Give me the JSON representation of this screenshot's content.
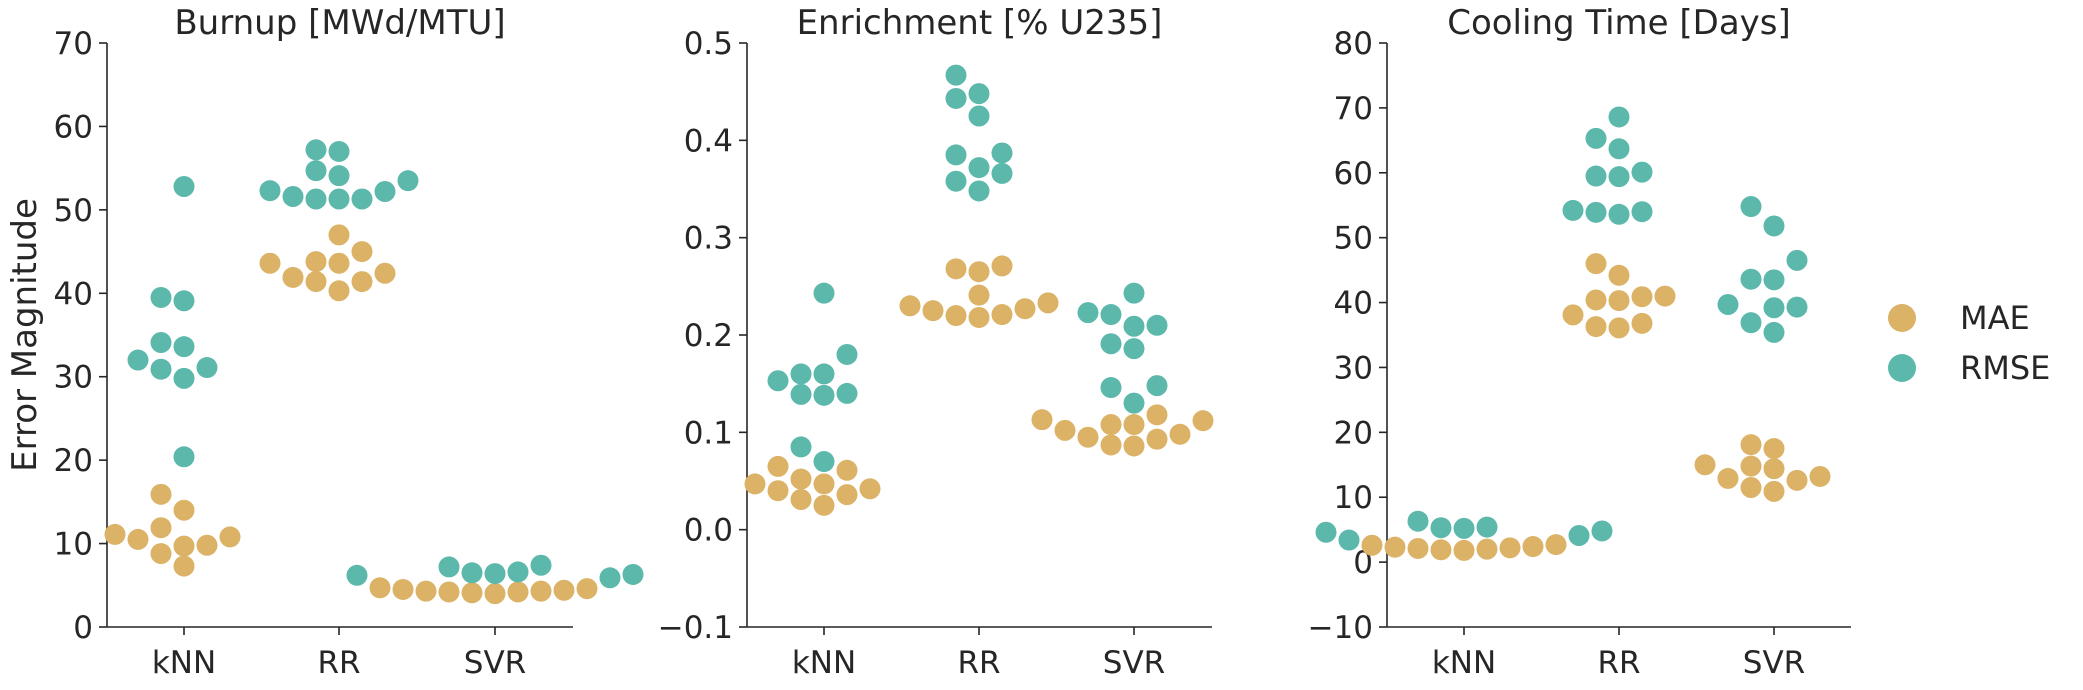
{
  "figure": {
    "ylabel": "Error Magnitude"
  },
  "legend": {
    "items": [
      {
        "label": "MAE",
        "color": "#dbb266"
      },
      {
        "label": "RMSE",
        "color": "#5cb8ab"
      }
    ],
    "placement": "right"
  },
  "chart_data": [
    {
      "type": "scatter",
      "style": "swarm",
      "title": "Burnup [MWd/MTU]",
      "categories": [
        "kNN",
        "RR",
        "SVR"
      ],
      "ylim": [
        0,
        70
      ],
      "yticks": [
        0,
        10,
        20,
        30,
        40,
        50,
        60,
        70
      ],
      "grid": false,
      "series": [
        {
          "name": "MAE",
          "values": [
            [
              11.1,
              10.5,
              8.8,
              7.3,
              9.8,
              11.9,
              14.0,
              15.9,
              9.7,
              10.8
            ],
            [
              45.0,
              42.4,
              43.8,
              41.4,
              40.3,
              43.6,
              47.0,
              41.4,
              43.6,
              41.9
            ],
            [
              4.6,
              4.3,
              4.1,
              4.3,
              4.0,
              4.2,
              4.2,
              4.4,
              4.5,
              4.7
            ]
          ]
        },
        {
          "name": "RMSE",
          "values": [
            [
              30.9,
              29.8,
              33.6,
              31.1,
              34.1,
              32.0,
              20.4,
              39.1,
              39.5,
              52.8
            ],
            [
              52.2,
              51.3,
              54.1,
              51.3,
              53.5,
              51.3,
              57.2,
              57.0,
              54.7,
              51.6,
              52.3
            ],
            [
              7.2,
              5.9,
              6.6,
              6.3,
              6.2,
              6.4,
              6.5,
              7.4
            ]
          ]
        }
      ]
    },
    {
      "type": "scatter",
      "style": "swarm",
      "title": "Enrichment [% U235]",
      "categories": [
        "kNN",
        "RR",
        "SVR"
      ],
      "ylim": [
        -0.1,
        0.5
      ],
      "yticks": [
        -0.1,
        0.0,
        0.1,
        0.2,
        0.3,
        0.4,
        0.5
      ],
      "ytick_labels": [
        "−0.1",
        "0.0",
        "0.1",
        "0.2",
        "0.3",
        "0.4",
        "0.5"
      ],
      "grid": false,
      "series": [
        {
          "name": "MAE",
          "values": [
            [
              0.052,
              0.042,
              0.031,
              0.047,
              0.025,
              0.065,
              0.036,
              0.061,
              0.04,
              0.047
            ],
            [
              0.233,
              0.227,
              0.22,
              0.268,
              0.218,
              0.241,
              0.265,
              0.221,
              0.271,
              0.225,
              0.23
            ],
            [
              0.113,
              0.095,
              0.108,
              0.087,
              0.102,
              0.086,
              0.108,
              0.093,
              0.112,
              0.098,
              0.118
            ]
          ]
        },
        {
          "name": "RMSE",
          "values": [
            [
              0.16,
              0.138,
              0.18,
              0.153,
              0.139,
              0.085,
              0.16,
              0.14,
              0.07,
              0.243
            ],
            [
              0.387,
              0.358,
              0.385,
              0.443,
              0.467,
              0.425,
              0.366,
              0.348,
              0.448,
              0.372
            ],
            [
              0.223,
              0.191,
              0.221,
              0.146,
              0.186,
              0.13,
              0.21,
              0.148,
              0.243,
              0.209
            ]
          ]
        }
      ]
    },
    {
      "type": "scatter",
      "style": "swarm",
      "title": "Cooling Time [Days]",
      "categories": [
        "kNN",
        "RR",
        "SVR"
      ],
      "ylim": [
        -10,
        80
      ],
      "yticks": [
        -10,
        0,
        10,
        20,
        30,
        40,
        50,
        60,
        70,
        80
      ],
      "ytick_labels": [
        "−10",
        "0",
        "10",
        "20",
        "30",
        "40",
        "50",
        "60",
        "70",
        "80"
      ],
      "grid": false,
      "series": [
        {
          "name": "MAE",
          "values": [
            [
              2.6,
              2.1,
              1.9,
              1.8,
              2.0,
              2.3,
              2.4,
              2.2,
              2.7
            ],
            [
              41.0,
              38.1,
              36.3,
              40.9,
              46.0,
              36.1,
              44.2,
              40.3,
              40.4,
              36.8
            ],
            [
              13.2,
              15.0,
              11.5,
              18.1,
              14.4,
              10.9,
              17.5,
              12.6,
              12.9,
              14.8
            ]
          ]
        },
        {
          "name": "RMSE",
          "values": [
            [
              3.4,
              5.4,
              4.8,
              4.6,
              5.2,
              5.3,
              6.3,
              4.1
            ],
            [
              59.5,
              54.0,
              65.3,
              59.4,
              53.6,
              63.7,
              68.6,
              53.9,
              60.1,
              54.2
            ],
            [
              43.5,
              39.2,
              36.9,
              35.4,
              43.6,
              46.5,
              51.8,
              54.8,
              39.3,
              39.7
            ]
          ]
        }
      ]
    }
  ]
}
